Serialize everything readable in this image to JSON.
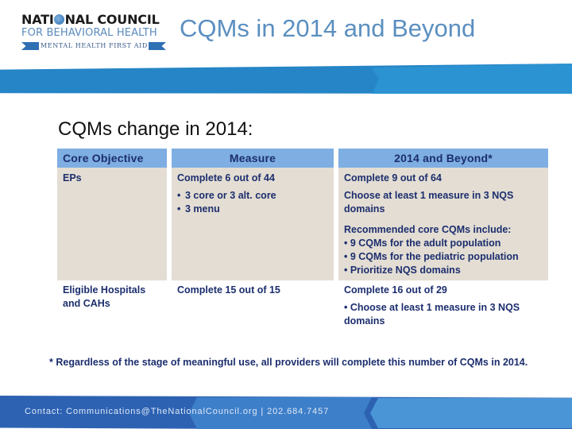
{
  "logo": {
    "line1_pre": "NATI",
    "line1_post": "NAL COUNCIL",
    "line2": "FOR BEHAVIORAL HEALTH",
    "ribbon": "MENTAL HEALTH FIRST AID"
  },
  "header": {
    "title": "CQMs in 2014 and Beyond"
  },
  "subtitle": "CQMs change in 2014:",
  "table": {
    "columns": [
      "Core Objective",
      "Measure",
      "2014 and Beyond*"
    ],
    "rows": [
      {
        "objective": "EPs",
        "measure": {
          "summary": "Complete 6 out of 44",
          "bullets": [
            "3 core or 3 alt. core",
            "3 menu"
          ]
        },
        "beyond": {
          "summary": "Complete 9 out of 64",
          "detail": "Choose at least 1 measure in 3 NQS domains",
          "recommended_heading": "Recommended core CQMs include:",
          "recommended": [
            "• 9 CQMs for the adult population",
            "• 9 CQMs for the pediatric population",
            "• Prioritize NQS domains"
          ]
        }
      },
      {
        "objective": "Eligible Hospitals and CAHs",
        "measure": {
          "summary": "Complete 15 out of 15"
        },
        "beyond": {
          "summary": "Complete 16 out of 29",
          "detail": "• Choose at least 1 measure in 3 NQS domains"
        }
      }
    ]
  },
  "footnote": "* Regardless of the stage of meaningful use, all providers will complete this number of CQMs in 2014.",
  "footer": {
    "contact": "Contact: Communications@TheNationalCouncil.org  |  202.684.7457"
  },
  "colors": {
    "title": "#5b8fc0",
    "band": "#2585c6",
    "table_header": "#7eaee2",
    "table_body": "#e3ddd3",
    "text_navy": "#1c2e6e",
    "footer": "#2d62b3"
  }
}
